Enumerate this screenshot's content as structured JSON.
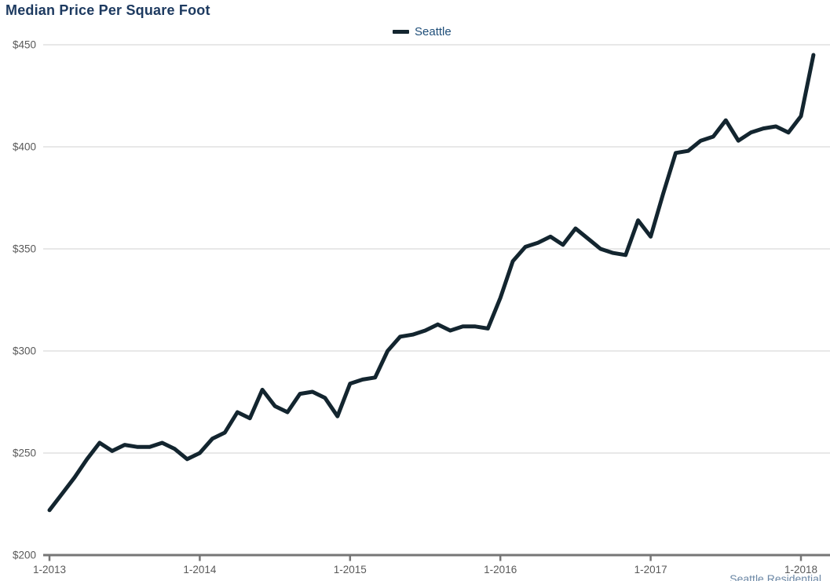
{
  "title": "Median Price Per Square Foot",
  "legend": {
    "label": "Seattle"
  },
  "attribution_partial": "Seattle Residential",
  "colors": {
    "line": "#13252f",
    "title_text": "#1d3a60",
    "legend_text": "#1f4e79",
    "axis_label": "#595959",
    "gridline": "#d2d2d2",
    "axis_line": "#767676",
    "attribution_text": "#6b87a5",
    "background": "#ffffff"
  },
  "chart_data": {
    "type": "line",
    "title": "Median Price Per Square Foot",
    "xlabel": "",
    "ylabel": "",
    "x_unit": "month",
    "x_start": "2013-01",
    "x_end": "2018-02",
    "x_tick_labels": [
      "1-2013",
      "1-2014",
      "1-2015",
      "1-2016",
      "1-2017",
      "1-2018"
    ],
    "x_tick_month_indices": [
      0,
      12,
      24,
      36,
      48,
      60
    ],
    "ylim": [
      200,
      450
    ],
    "y_ticks": [
      200,
      250,
      300,
      350,
      400,
      450
    ],
    "y_tick_labels": [
      "$200",
      "$250",
      "$300",
      "$350",
      "$400",
      "$450"
    ],
    "grid": "horizontal",
    "legend_position": "top-center",
    "series": [
      {
        "name": "Seattle",
        "values": [
          222,
          230,
          238,
          247,
          255,
          251,
          254,
          253,
          253,
          255,
          252,
          247,
          250,
          257,
          260,
          270,
          267,
          281,
          273,
          270,
          279,
          280,
          277,
          268,
          284,
          286,
          287,
          300,
          307,
          308,
          310,
          313,
          310,
          312,
          312,
          311,
          326,
          344,
          351,
          353,
          356,
          352,
          360,
          355,
          350,
          348,
          347,
          364,
          356,
          377,
          397,
          398,
          403,
          405,
          413,
          403,
          407,
          409,
          410,
          407,
          415,
          445
        ]
      }
    ]
  }
}
